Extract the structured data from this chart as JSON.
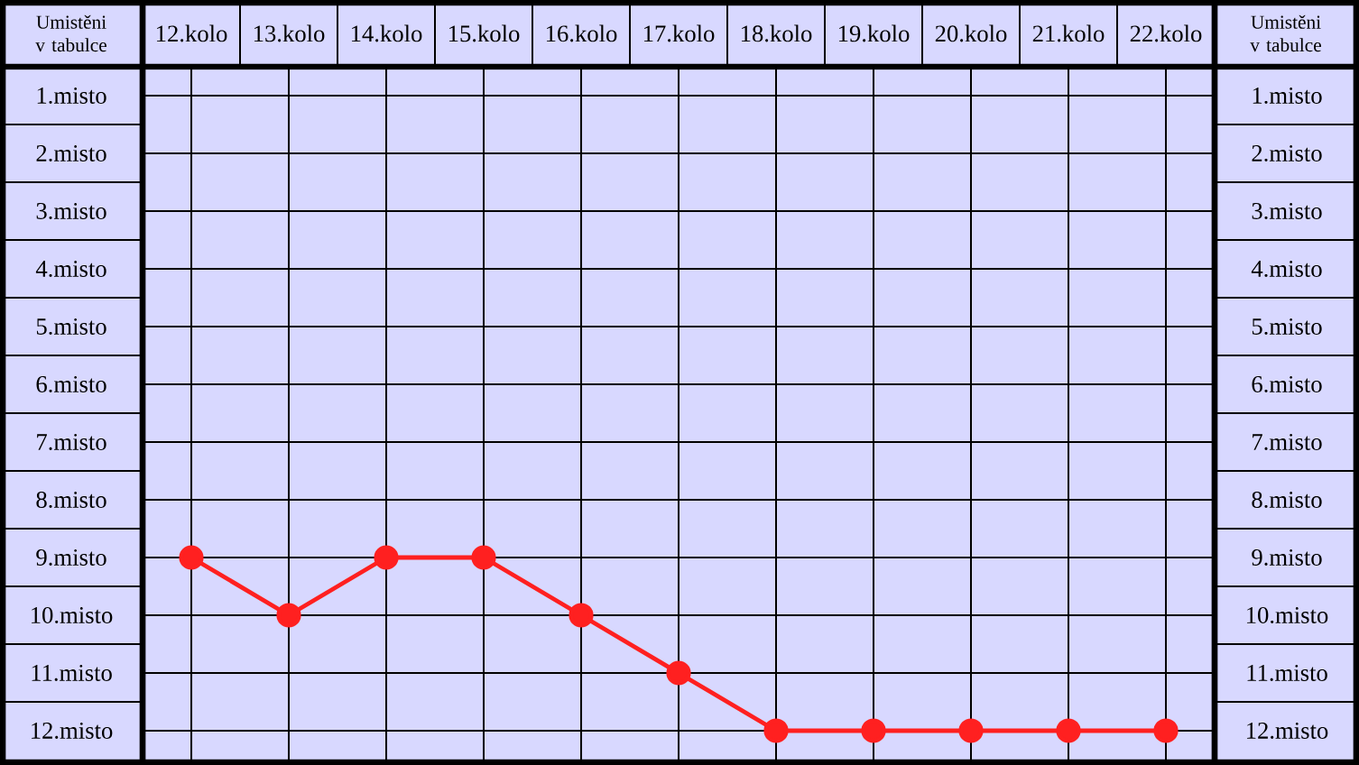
{
  "chart_data": {
    "type": "line",
    "categories": [
      "12.kolo",
      "13.kolo",
      "14.kolo",
      "15.kolo",
      "16.kolo",
      "17.kolo",
      "18.kolo",
      "19.kolo",
      "20.kolo",
      "21.kolo",
      "22.kolo"
    ],
    "series": [
      {
        "color": "#ff2020",
        "values": [
          9,
          10,
          9,
          9,
          10,
          11,
          12,
          12,
          12,
          12,
          12
        ]
      }
    ],
    "ylim": [
      12.5,
      0.5
    ],
    "yticks": [
      {
        "value": 1,
        "label": "1.misto"
      },
      {
        "value": 2,
        "label": "2.misto"
      },
      {
        "value": 3,
        "label": "3.misto"
      },
      {
        "value": 4,
        "label": "4.misto"
      },
      {
        "value": 5,
        "label": "5.misto"
      },
      {
        "value": 6,
        "label": "6.misto"
      },
      {
        "value": 7,
        "label": "7.misto"
      },
      {
        "value": 8,
        "label": "8.misto"
      },
      {
        "value": 9,
        "label": "9.misto"
      },
      {
        "value": 10,
        "label": "10.misto"
      },
      {
        "value": 11,
        "label": "11.misto"
      },
      {
        "value": 12,
        "label": "12.misto"
      }
    ],
    "y2lim": [
      12.5,
      0.5
    ],
    "y2ticks": [
      {
        "value": 1,
        "label": "1.misto"
      },
      {
        "value": 2,
        "label": "2.misto"
      },
      {
        "value": 3,
        "label": "3.misto"
      },
      {
        "value": 4,
        "label": "4.misto"
      },
      {
        "value": 5,
        "label": "5.misto"
      },
      {
        "value": 6,
        "label": "6.misto"
      },
      {
        "value": 7,
        "label": "7.misto"
      },
      {
        "value": 8,
        "label": "8.misto"
      },
      {
        "value": 9,
        "label": "9.misto"
      },
      {
        "value": 10,
        "label": "10.misto"
      },
      {
        "value": 11,
        "label": "11.misto"
      },
      {
        "value": 12,
        "label": "12.misto"
      }
    ],
    "ylabel": "Umistěni v tabulce",
    "y2label": "Umistěni v tabulce",
    "grid": true,
    "marker": "circle",
    "line_style": "solid"
  }
}
